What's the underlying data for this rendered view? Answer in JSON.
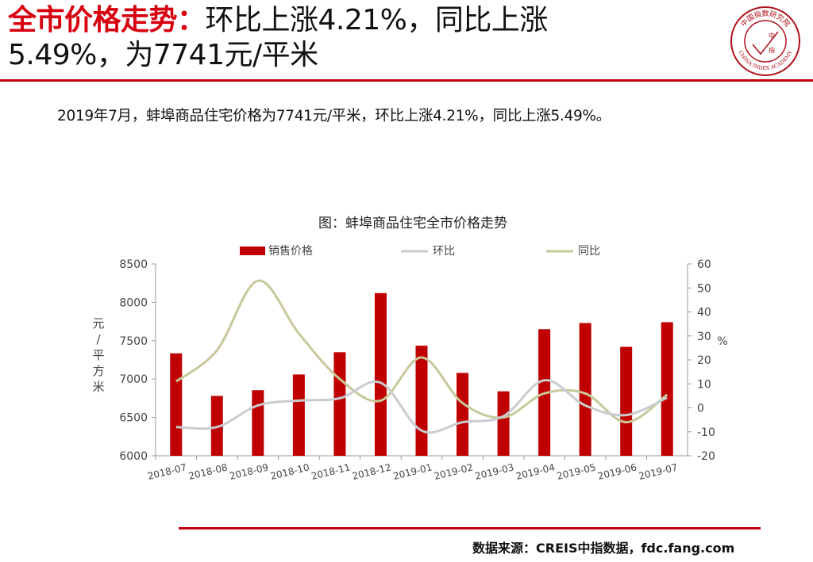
{
  "header": {
    "title_strong": "全市价格走势：",
    "title_rest_line1": "环比上涨4.21%，同比上涨",
    "title_line2": "5.49%，为7741元/平米"
  },
  "logo": {
    "name_cn": "中国指数研究院",
    "name_en": "CHINA INDEX ACADEMY",
    "center_top": "中",
    "center_bottom": "指"
  },
  "summary": "2019年7月，蚌埠商品住宅价格为7741元/平米，环比上涨4.21%，同比上涨5.49%。",
  "chart_data": {
    "type": "bar",
    "title": "图：蚌埠商品住宅全市价格走势",
    "categories": [
      "2018-07",
      "2018-08",
      "2018-09",
      "2018-10",
      "2018-11",
      "2018-12",
      "2019-01",
      "2019-02",
      "2019-03",
      "2019-04",
      "2019-05",
      "2019-06",
      "2019-07"
    ],
    "series": [
      {
        "name": "销售价格",
        "type": "bar",
        "axis": "left",
        "color": "#c00000",
        "values": [
          7335,
          6780,
          6855,
          7060,
          7350,
          8120,
          7435,
          7080,
          6840,
          7650,
          7730,
          7420,
          7741
        ]
      },
      {
        "name": "环比",
        "type": "line",
        "axis": "right",
        "color": "#c8ccd0",
        "values": [
          -8,
          -8,
          1,
          3,
          4,
          10.5,
          -9.5,
          -6,
          -3.5,
          11.5,
          1,
          -3,
          4.21
        ]
      },
      {
        "name": "同比",
        "type": "line",
        "axis": "right",
        "color": "#c8c89a",
        "values": [
          11,
          24,
          53,
          31,
          12,
          3,
          21,
          2,
          -4,
          6,
          6,
          -6,
          5.49
        ]
      }
    ],
    "ylabel_left": "元/平方米",
    "ylabel_right": "%",
    "ylim_left": [
      6000,
      8500
    ],
    "yticks_left": [
      6000,
      6500,
      7000,
      7500,
      8000,
      8500
    ],
    "ylim_right": [
      -20,
      60
    ],
    "yticks_right": [
      -20,
      -10,
      0,
      10,
      20,
      30,
      40,
      50,
      60
    ],
    "legend": "top"
  },
  "source": "数据来源：CREIS中指数据，fdc.fang.com"
}
